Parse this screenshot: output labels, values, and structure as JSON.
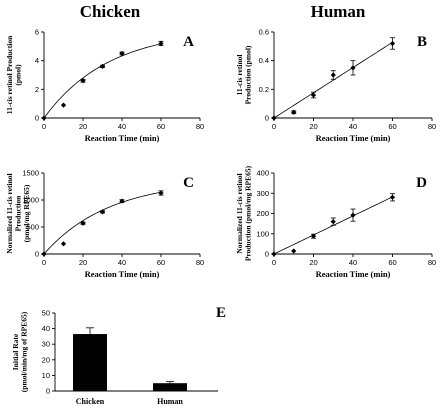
{
  "headers": {
    "left": "Chicken",
    "right": "Human"
  },
  "chart_data": [
    {
      "id": "A",
      "letter": "A",
      "type": "scatter",
      "xlabel": "Reaction Time (min)",
      "ylabel": [
        "11-cis retinol Production",
        "(pmol)"
      ],
      "xlim": [
        0,
        80
      ],
      "ylim": [
        0,
        6
      ],
      "xticks": [
        0,
        20,
        40,
        60,
        80
      ],
      "yticks": [
        0,
        2,
        4,
        6
      ],
      "points": [
        {
          "x": 0,
          "y": 0,
          "err": 0
        },
        {
          "x": 10,
          "y": 0.9,
          "err": 0.05
        },
        {
          "x": 20,
          "y": 2.6,
          "err": 0.1
        },
        {
          "x": 30,
          "y": 3.6,
          "err": 0.08
        },
        {
          "x": 40,
          "y": 4.5,
          "err": 0.1
        },
        {
          "x": 60,
          "y": 5.2,
          "err": 0.15
        }
      ],
      "fit": {
        "kind": "saturating",
        "params": [
          6.2,
          0.03
        ],
        "xmax": 60
      }
    },
    {
      "id": "B",
      "letter": "B",
      "type": "scatter",
      "xlabel": "Reaction Time (min)",
      "ylabel": [
        "11-cis retinol",
        "Production (pmol)"
      ],
      "xlim": [
        0,
        80
      ],
      "ylim": [
        0,
        0.6
      ],
      "xticks": [
        0,
        20,
        40,
        60,
        80
      ],
      "yticks": [
        0,
        0.2,
        0.4,
        0.6
      ],
      "ytick_labels": [
        "0",
        "0.2",
        "0.4",
        "0.6"
      ],
      "points": [
        {
          "x": 0,
          "y": 0,
          "err": 0
        },
        {
          "x": 10,
          "y": 0.04,
          "err": 0.01
        },
        {
          "x": 20,
          "y": 0.16,
          "err": 0.02
        },
        {
          "x": 30,
          "y": 0.3,
          "err": 0.03
        },
        {
          "x": 40,
          "y": 0.35,
          "err": 0.05
        },
        {
          "x": 60,
          "y": 0.52,
          "err": 0.04
        }
      ],
      "fit": {
        "kind": "linear",
        "params": [
          0.0088,
          0
        ],
        "xmax": 60
      }
    },
    {
      "id": "C",
      "letter": "C",
      "type": "scatter",
      "xlabel": "Reaction Time (min)",
      "ylabel": [
        "Normalized 11-cis retinol",
        "Production",
        "(pmol/mg RPE65)"
      ],
      "xlim": [
        0,
        80
      ],
      "ylim": [
        0,
        1500
      ],
      "xticks": [
        0,
        20,
        40,
        60,
        80
      ],
      "yticks": [
        0,
        500,
        1000,
        1500
      ],
      "points": [
        {
          "x": 0,
          "y": 0,
          "err": 0
        },
        {
          "x": 10,
          "y": 190,
          "err": 15
        },
        {
          "x": 20,
          "y": 570,
          "err": 20
        },
        {
          "x": 30,
          "y": 780,
          "err": 20
        },
        {
          "x": 40,
          "y": 980,
          "err": 25
        },
        {
          "x": 60,
          "y": 1130,
          "err": 40
        }
      ],
      "fit": {
        "kind": "saturating",
        "params": [
          1370,
          0.03
        ],
        "xmax": 60
      }
    },
    {
      "id": "D",
      "letter": "D",
      "type": "scatter",
      "xlabel": "Reaction Time (min)",
      "ylabel": [
        "Normalized 11-cis retinol",
        "Production (pmol/mg RPE65)"
      ],
      "xlim": [
        0,
        80
      ],
      "ylim": [
        0,
        400
      ],
      "xticks": [
        0,
        20,
        40,
        60,
        80
      ],
      "yticks": [
        0,
        100,
        200,
        300,
        400
      ],
      "points": [
        {
          "x": 0,
          "y": 0,
          "err": 0
        },
        {
          "x": 10,
          "y": 15,
          "err": 4
        },
        {
          "x": 20,
          "y": 88,
          "err": 10
        },
        {
          "x": 30,
          "y": 160,
          "err": 18
        },
        {
          "x": 40,
          "y": 192,
          "err": 30
        },
        {
          "x": 60,
          "y": 280,
          "err": 18
        }
      ],
      "fit": {
        "kind": "linear",
        "params": [
          4.7,
          0
        ],
        "xmax": 60
      }
    },
    {
      "id": "E",
      "letter": "E",
      "type": "bar",
      "ylabel": [
        "Initial Rate",
        "(pmol/min/mg of RPE65)"
      ],
      "categories": [
        "Chicken",
        "Human"
      ],
      "values": [
        36.5,
        5
      ],
      "errors": [
        4,
        1
      ],
      "ylim": [
        0,
        50
      ],
      "yticks": [
        0,
        10,
        20,
        30,
        40,
        50
      ]
    }
  ]
}
